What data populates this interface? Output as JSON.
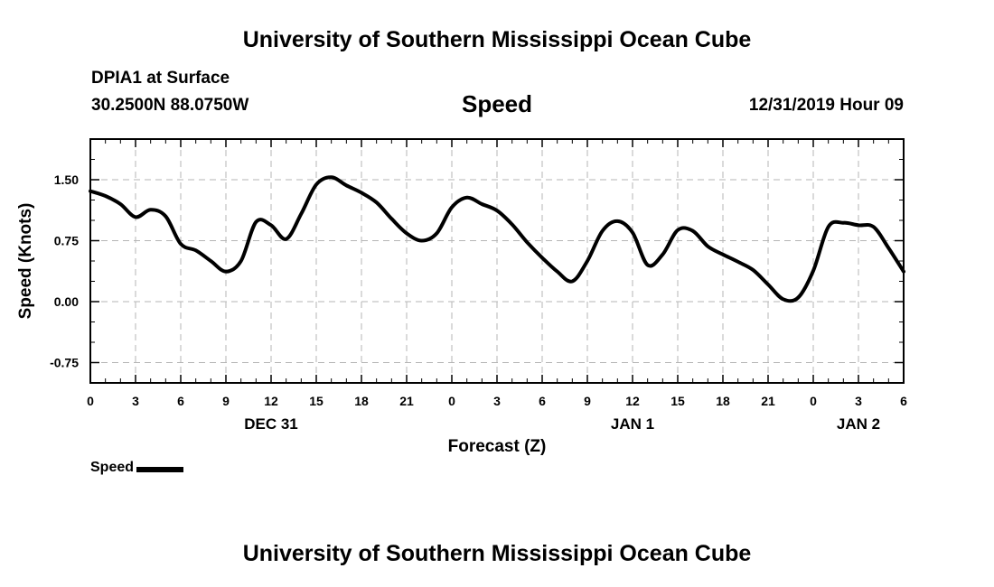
{
  "header": {
    "title": "University of Southern Mississippi Ocean Cube",
    "station": "DPIA1 at Surface",
    "coordinates": "30.2500N 88.0750W",
    "variable": "Speed",
    "timestamp": "12/31/2019 Hour 09"
  },
  "footer": {
    "title": "University of Southern Mississippi Ocean Cube"
  },
  "legend": {
    "label": "Speed"
  },
  "chart_data": {
    "type": "line",
    "xlabel": "Forecast (Z)",
    "ylabel": "Speed (Knots)",
    "xlim": [
      0,
      54
    ],
    "ylim": [
      -1.0,
      2.0
    ],
    "x_ticks": [
      0,
      3,
      6,
      9,
      12,
      15,
      18,
      21,
      24,
      27,
      30,
      33,
      36,
      39,
      42,
      45,
      48,
      51,
      54
    ],
    "x_tick_labels": [
      "0",
      "3",
      "6",
      "9",
      "12",
      "15",
      "18",
      "21",
      "0",
      "3",
      "6",
      "9",
      "12",
      "15",
      "18",
      "21",
      "0",
      "3",
      "6"
    ],
    "y_ticks": [
      1.5,
      0.75,
      0.0,
      -0.75
    ],
    "y_tick_labels": [
      "1.50",
      "0.75",
      "0.00",
      "-0.75"
    ],
    "y_minor_step": 0.25,
    "date_labels": [
      {
        "label": "DEC 31",
        "x": 12
      },
      {
        "label": "JAN 1",
        "x": 36
      },
      {
        "label": "JAN 2",
        "x": 51
      }
    ],
    "grid": true,
    "series": [
      {
        "name": "Speed",
        "color": "#000000",
        "x": [
          0,
          1,
          2,
          3,
          4,
          5,
          6,
          7,
          8,
          9,
          10,
          11,
          12,
          13,
          14,
          15,
          16,
          17,
          18,
          19,
          20,
          21,
          22,
          23,
          24,
          25,
          26,
          27,
          28,
          29,
          30,
          31,
          32,
          33,
          34,
          35,
          36,
          37,
          38,
          39,
          40,
          41,
          42,
          43,
          44,
          45,
          46,
          47,
          48,
          49,
          50,
          51,
          52,
          53,
          54
        ],
        "values": [
          1.36,
          1.3,
          1.2,
          1.04,
          1.13,
          1.05,
          0.71,
          0.63,
          0.5,
          0.37,
          0.5,
          0.98,
          0.94,
          0.77,
          1.08,
          1.44,
          1.53,
          1.43,
          1.34,
          1.22,
          1.02,
          0.84,
          0.75,
          0.84,
          1.16,
          1.28,
          1.2,
          1.12,
          0.95,
          0.73,
          0.54,
          0.37,
          0.25,
          0.5,
          0.87,
          0.99,
          0.85,
          0.45,
          0.58,
          0.88,
          0.87,
          0.68,
          0.58,
          0.49,
          0.39,
          0.21,
          0.03,
          0.05,
          0.38,
          0.92,
          0.97,
          0.94,
          0.92,
          0.66,
          0.37
        ]
      }
    ]
  }
}
